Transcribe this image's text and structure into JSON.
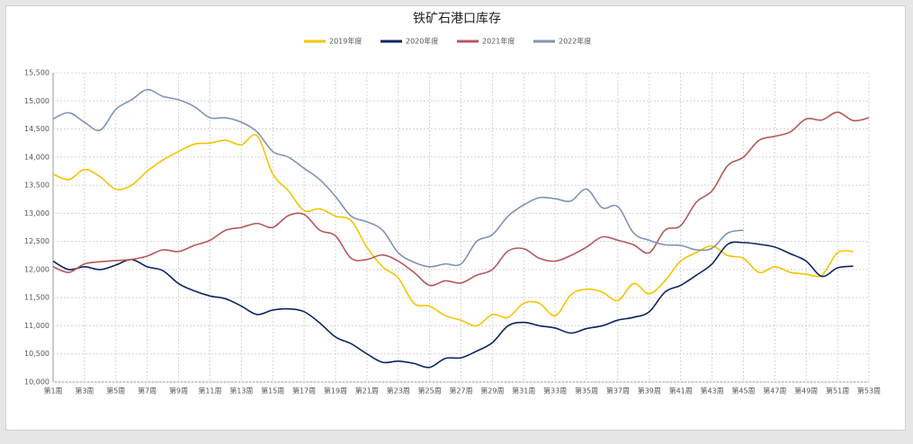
{
  "chart_data": {
    "type": "line",
    "title": "铁矿石港口库存",
    "categories": [
      "第1周",
      null,
      "第3周",
      null,
      "第5周",
      null,
      "第7周",
      null,
      "第9周",
      null,
      "第11周",
      null,
      "第13周",
      null,
      "第15周",
      null,
      "第17周",
      null,
      "第19周",
      null,
      "第21周",
      null,
      "第23周",
      null,
      "第25周",
      null,
      "第27周",
      null,
      "第29周",
      null,
      "第31周",
      null,
      "第33周",
      null,
      "第35周",
      null,
      "第37周",
      null,
      "第39周",
      null,
      "第41周",
      null,
      "第43周",
      null,
      "第45周",
      null,
      "第47周",
      null,
      "第49周",
      null,
      "第51周",
      null,
      "第53周"
    ],
    "series": [
      {
        "name": "2019年度",
        "color": "#f5c400",
        "values": [
          13700,
          13600,
          13780,
          13650,
          13430,
          13500,
          13750,
          13950,
          14100,
          14230,
          14250,
          14300,
          14220,
          14380,
          13700,
          13400,
          13050,
          13080,
          12950,
          12870,
          12400,
          12050,
          11850,
          11400,
          11350,
          11180,
          11100,
          11000,
          11200,
          11150,
          11400,
          11400,
          11180,
          11550,
          11650,
          11600,
          11450,
          11750,
          11570,
          11800,
          12150,
          12300,
          12420,
          12250,
          12200,
          11950,
          12050,
          11950,
          11920,
          11900,
          12300,
          12320,
          null
        ]
      },
      {
        "name": "2020年度",
        "color": "#0c2461",
        "values": [
          12150,
          12000,
          12050,
          12000,
          12080,
          12180,
          12050,
          11980,
          11750,
          11620,
          11530,
          11480,
          11350,
          11200,
          11280,
          11300,
          11250,
          11050,
          10800,
          10680,
          10500,
          10350,
          10370,
          10330,
          10260,
          10420,
          10430,
          10550,
          10700,
          11000,
          11060,
          11000,
          10960,
          10870,
          10950,
          11000,
          11100,
          11150,
          11250,
          11600,
          11720,
          11900,
          12100,
          12450,
          12480,
          12450,
          12400,
          12280,
          12150,
          11880,
          12030,
          12060,
          null
        ]
      },
      {
        "name": "2021年度",
        "color": "#b5585a",
        "values": [
          12050,
          11950,
          12100,
          12140,
          12160,
          12180,
          12240,
          12350,
          12320,
          12430,
          12520,
          12700,
          12750,
          12820,
          12750,
          12960,
          12980,
          12700,
          12600,
          12200,
          12180,
          12260,
          12150,
          11950,
          11720,
          11800,
          11760,
          11900,
          12000,
          12330,
          12370,
          12200,
          12150,
          12250,
          12400,
          12580,
          12520,
          12440,
          12300,
          12700,
          12780,
          13200,
          13400,
          13850,
          14000,
          14300,
          14370,
          14450,
          14680,
          14660,
          14800,
          14650,
          14700
        ]
      },
      {
        "name": "2022年度",
        "color": "#7f93b5",
        "values": [
          14680,
          14790,
          14620,
          14480,
          14850,
          15020,
          15200,
          15080,
          15020,
          14900,
          14700,
          14700,
          14620,
          14450,
          14100,
          14000,
          13800,
          13600,
          13300,
          12950,
          12850,
          12700,
          12300,
          12130,
          12050,
          12100,
          12100,
          12500,
          12620,
          12950,
          13150,
          13280,
          13260,
          13220,
          13430,
          13100,
          13120,
          12650,
          12520,
          12440,
          12430,
          12350,
          12380,
          12650,
          12700,
          null,
          null,
          null,
          null,
          null,
          null,
          null,
          null
        ]
      }
    ],
    "ylim": [
      10000,
      15500
    ],
    "yticks": [
      {
        "value": 10000,
        "label": "10,000"
      },
      {
        "value": 10500,
        "label": "10,500"
      },
      {
        "value": 11000,
        "label": "11,000"
      },
      {
        "value": 11500,
        "label": "11,500"
      },
      {
        "value": 12000,
        "label": "12,000"
      },
      {
        "value": 12500,
        "label": "12,500"
      },
      {
        "value": 13000,
        "label": "13,000"
      },
      {
        "value": 13500,
        "label": "13,500"
      },
      {
        "value": 14000,
        "label": "14,000"
      },
      {
        "value": 14500,
        "label": "14,500"
      },
      {
        "value": 15000,
        "label": "15,000"
      },
      {
        "value": 15500,
        "label": "15,500"
      }
    ],
    "grid": true
  }
}
